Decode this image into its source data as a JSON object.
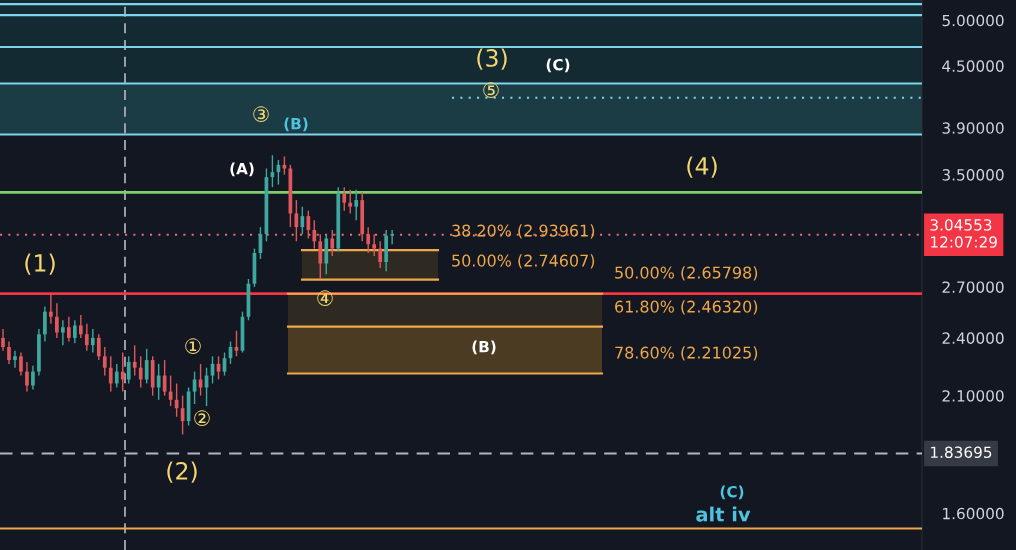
{
  "chart_data": {
    "type": "candlestick",
    "categories": [
      null,
      null,
      null,
      null,
      null,
      null,
      null,
      null,
      null,
      null,
      null,
      null,
      null,
      null,
      null,
      null,
      null,
      null,
      null,
      null,
      null,
      null,
      null,
      null,
      null,
      null,
      null,
      null,
      null,
      null,
      null,
      null,
      null,
      null,
      null,
      null,
      null,
      null,
      null,
      null,
      null,
      null,
      null,
      null,
      null,
      null,
      null,
      null,
      null,
      null,
      null,
      null,
      null,
      null,
      null,
      null,
      null,
      null,
      null,
      null,
      null,
      null,
      null,
      null,
      null,
      null,
      null,
      null,
      null,
      null,
      null,
      null,
      null,
      null,
      null,
      null,
      null,
      null,
      null,
      null,
      null,
      null,
      null,
      null,
      null,
      null,
      null,
      null,
      null,
      null,
      null,
      null,
      null,
      null,
      null,
      null,
      null,
      null,
      null,
      null,
      null,
      null,
      null,
      null,
      null,
      null,
      null,
      null,
      null,
      null,
      null,
      null,
      null,
      null,
      null,
      null,
      null,
      null,
      null,
      null,
      null,
      null,
      null,
      null,
      null,
      null,
      null,
      null,
      null,
      null,
      null,
      null,
      null,
      null,
      null,
      null,
      null,
      null,
      null,
      null,
      null,
      null,
      null,
      null,
      null,
      null,
      null,
      null,
      null,
      null,
      null,
      null,
      null,
      null
    ],
    "ohlc": [
      [
        2.4,
        2.45,
        2.33,
        2.35
      ],
      [
        2.35,
        2.38,
        2.26,
        2.28
      ],
      [
        2.28,
        2.33,
        2.24,
        2.3
      ],
      [
        2.3,
        2.32,
        2.2,
        2.22
      ],
      [
        2.22,
        2.27,
        2.12,
        2.15
      ],
      [
        2.15,
        2.25,
        2.13,
        2.22
      ],
      [
        2.22,
        2.45,
        2.2,
        2.42
      ],
      [
        2.42,
        2.58,
        2.38,
        2.55
      ],
      [
        2.55,
        2.66,
        2.48,
        2.52
      ],
      [
        2.52,
        2.6,
        2.4,
        2.43
      ],
      [
        2.43,
        2.5,
        2.36,
        2.46
      ],
      [
        2.46,
        2.52,
        2.38,
        2.4
      ],
      [
        2.4,
        2.5,
        2.37,
        2.47
      ],
      [
        2.47,
        2.53,
        2.4,
        2.42
      ],
      [
        2.42,
        2.48,
        2.33,
        2.36
      ],
      [
        2.36,
        2.45,
        2.32,
        2.4
      ],
      [
        2.4,
        2.42,
        2.28,
        2.3
      ],
      [
        2.3,
        2.35,
        2.2,
        2.24
      ],
      [
        2.24,
        2.3,
        2.12,
        2.16
      ],
      [
        2.16,
        2.26,
        2.14,
        2.22
      ],
      [
        2.22,
        2.32,
        2.12,
        2.18
      ],
      [
        2.18,
        2.3,
        2.16,
        2.27
      ],
      [
        2.27,
        2.36,
        2.2,
        2.24
      ],
      [
        2.24,
        2.3,
        2.14,
        2.18
      ],
      [
        2.18,
        2.34,
        2.16,
        2.28
      ],
      [
        2.28,
        2.3,
        2.1,
        2.14
      ],
      [
        2.14,
        2.26,
        2.08,
        2.2
      ],
      [
        2.2,
        2.28,
        2.1,
        2.12
      ],
      [
        2.12,
        2.2,
        2.05,
        2.08
      ],
      [
        2.08,
        2.16,
        2.0,
        2.04
      ],
      [
        2.04,
        2.1,
        1.92,
        1.98
      ],
      [
        1.98,
        2.14,
        1.96,
        2.12
      ],
      [
        2.12,
        2.22,
        2.06,
        2.18
      ],
      [
        2.18,
        2.26,
        2.1,
        2.14
      ],
      [
        2.14,
        2.24,
        2.05,
        2.2
      ],
      [
        2.2,
        2.3,
        2.16,
        2.26
      ],
      [
        2.26,
        2.3,
        2.18,
        2.22
      ],
      [
        2.22,
        2.32,
        2.2,
        2.29
      ],
      [
        2.29,
        2.38,
        2.26,
        2.35
      ],
      [
        2.35,
        2.44,
        2.3,
        2.33
      ],
      [
        2.33,
        2.55,
        2.32,
        2.52
      ],
      [
        2.52,
        2.75,
        2.5,
        2.72
      ],
      [
        2.72,
        2.95,
        2.7,
        2.92
      ],
      [
        2.92,
        3.1,
        2.88,
        3.05
      ],
      [
        3.05,
        3.55,
        3.0,
        3.48
      ],
      [
        3.48,
        3.66,
        3.4,
        3.52
      ],
      [
        3.52,
        3.62,
        3.42,
        3.58
      ],
      [
        3.58,
        3.65,
        3.5,
        3.55
      ],
      [
        3.55,
        3.58,
        3.1,
        3.2
      ],
      [
        3.2,
        3.3,
        3.0,
        3.1
      ],
      [
        3.1,
        3.25,
        3.05,
        3.18
      ],
      [
        3.18,
        3.22,
        3.02,
        3.08
      ],
      [
        3.08,
        3.15,
        2.95,
        3.0
      ],
      [
        3.0,
        3.05,
        2.75,
        2.85
      ],
      [
        2.85,
        3.05,
        2.78,
        3.02
      ],
      [
        3.02,
        3.08,
        2.9,
        2.95
      ],
      [
        2.95,
        3.4,
        2.93,
        3.35
      ],
      [
        3.35,
        3.4,
        3.22,
        3.28
      ],
      [
        3.28,
        3.38,
        3.2,
        3.25
      ],
      [
        3.25,
        3.38,
        3.15,
        3.3
      ],
      [
        3.3,
        3.36,
        3.0,
        3.05
      ],
      [
        3.05,
        3.1,
        2.92,
        2.98
      ],
      [
        2.98,
        3.05,
        2.9,
        2.95
      ],
      [
        2.95,
        3.0,
        2.82,
        2.86
      ],
      [
        2.86,
        3.08,
        2.8,
        3.04
      ],
      [
        3.04,
        3.08,
        2.98,
        3.05
      ],
      null,
      null,
      null,
      null,
      null,
      null,
      null,
      null,
      null,
      null,
      null,
      null,
      null,
      null,
      null,
      null,
      null,
      null,
      null,
      null,
      null,
      null,
      null,
      null,
      null,
      null,
      null,
      null,
      null,
      null,
      null,
      null,
      null,
      null,
      null,
      null,
      null,
      null,
      null,
      null,
      null,
      null,
      null,
      null,
      null,
      null,
      null,
      null,
      null,
      null,
      null,
      null,
      null,
      null,
      null,
      null,
      null,
      null,
      null,
      null,
      null,
      null,
      null,
      null,
      null,
      null,
      null,
      null,
      null,
      null,
      null,
      null,
      null,
      null,
      null,
      null,
      null,
      null,
      null,
      null,
      null,
      null,
      null,
      null,
      null,
      null,
      null,
      null
    ],
    "colors": [
      "#e0585b",
      "#e0585b",
      "#3fa89e",
      "#e0585b",
      "#e0585b",
      "#3fa89e",
      "#3fa89e",
      "#3fa89e",
      "#e0585b",
      "#e0585b",
      "#3fa89e",
      "#e0585b",
      "#3fa89e",
      "#e0585b",
      "#e0585b",
      "#3fa89e",
      "#e0585b",
      "#e0585b",
      "#e0585b",
      "#3fa89e",
      "#e0585b",
      "#3fa89e",
      "#e0585b",
      "#e0585b",
      "#3fa89e",
      "#e0585b",
      "#3fa89e",
      "#e0585b",
      "#e0585b",
      "#e0585b",
      "#e0585b",
      "#3fa89e",
      "#3fa89e",
      "#e0585b",
      "#3fa89e",
      "#3fa89e",
      "#e0585b",
      "#3fa89e",
      "#3fa89e",
      "#e0585b",
      "#3fa89e",
      "#3fa89e",
      "#3fa89e",
      "#3fa89e",
      "#3fa89e",
      "#3fa89e",
      "#3fa89e",
      "#e0585b",
      "#e0585b",
      "#e0585b",
      "#3fa89e",
      "#e0585b",
      "#e0585b",
      "#e0585b",
      "#3fa89e",
      "#e0585b",
      "#3fa89e",
      "#e0585b",
      "#e0585b",
      "#3fa89e",
      "#e0585b",
      "#e0585b",
      "#e0585b",
      "#e0585b",
      "#3fa89e",
      "#3fa89e",
      null,
      null,
      null,
      null,
      null,
      null,
      null,
      null,
      null,
      null,
      null,
      null,
      null,
      null,
      null,
      null,
      null,
      null,
      null,
      null,
      null,
      null,
      null,
      null,
      null,
      null,
      null,
      null,
      null,
      null,
      null,
      null,
      null,
      null,
      null,
      null,
      null,
      null,
      null,
      null,
      null,
      null,
      null,
      null,
      null,
      null,
      null,
      null,
      null,
      null,
      null,
      null,
      null,
      null,
      null,
      null,
      null,
      null,
      null,
      null,
      null,
      null,
      null,
      null,
      null,
      null,
      null,
      null,
      null,
      null,
      null,
      null,
      null,
      null,
      null,
      null,
      null,
      null,
      null,
      null,
      null,
      null,
      null,
      null,
      null,
      null,
      null,
      null
    ],
    "log": true,
    "ylim": [
      1.47,
      5.24
    ],
    "yticks": [
      {
        "value": 1.6,
        "label": "1.60000"
      },
      {
        "value": 2.1,
        "label": "2.10000"
      },
      {
        "value": 2.4,
        "label": "2.40000"
      },
      {
        "value": 2.7,
        "label": "2.70000"
      },
      {
        "value": 3.5,
        "label": "3.50000"
      },
      {
        "value": 3.9,
        "label": "3.90000"
      },
      {
        "value": 4.5,
        "label": "4.50000"
      },
      {
        "value": 5.0,
        "label": "5.00000"
      }
    ],
    "tick_labels": "y",
    "bands": [
      {
        "axis": "y",
        "from": 3.84,
        "to": 5.24,
        "label": null,
        "color": "#142a33"
      },
      {
        "axis": "y",
        "from": 3.84,
        "to": 4.32,
        "label": null,
        "color": "#1b3b45"
      },
      {
        "axis": "y",
        "from": 2.74607,
        "to": 2.93961,
        "label": null,
        "color": "#2e2a22"
      },
      {
        "axis": "y",
        "from": 2.4632,
        "to": 2.65798,
        "label": null,
        "color": "#2e2a22"
      },
      {
        "axis": "y",
        "from": 2.21025,
        "to": 2.4632,
        "label": null,
        "color": "#4a3b22"
      }
    ],
    "ref_lines": [
      {
        "axis": "y",
        "value": 5.19,
        "label": null,
        "color": "#7fd3ea",
        "line_style": "solid"
      },
      {
        "axis": "y",
        "value": 5.06,
        "label": null,
        "color": "#7fd3ea",
        "line_style": "solid"
      },
      {
        "axis": "y",
        "value": 4.7,
        "label": null,
        "color": "#7fd3ea",
        "line_style": "solid"
      },
      {
        "axis": "y",
        "value": 4.32,
        "label": null,
        "color": "#7fd3ea",
        "line_style": "solid"
      },
      {
        "axis": "y",
        "value": 3.84,
        "label": null,
        "color": "#7fd3ea",
        "line_style": "solid"
      },
      {
        "axis": "y",
        "value": 4.18,
        "label": null,
        "color": "#7fd3ea",
        "line_style": "dotted"
      },
      {
        "axis": "y",
        "value": 3.36,
        "label": null,
        "color": "#7ccf6a",
        "line_style": "solid"
      },
      {
        "axis": "y",
        "value": 2.65798,
        "label": null,
        "color": "#f23645",
        "line_style": "solid"
      },
      {
        "axis": "y",
        "value": 3.04553,
        "label": "3.04553\n12:07:29",
        "color": "#f0686a",
        "line_style": "dotted"
      },
      {
        "axis": "y",
        "value": 1.83695,
        "label": "1.83695",
        "color": "#b2b5be",
        "line_style": "dashed"
      },
      {
        "axis": "y",
        "value": 1.545,
        "label": null,
        "color": "#f0a94a",
        "line_style": "solid"
      },
      {
        "axis": "y",
        "value": 2.93961,
        "label": "38.20% (2.93961)",
        "color": "#f0a94a",
        "line_style": "solid"
      },
      {
        "axis": "y",
        "value": 2.74607,
        "label": "50.00% (2.74607)",
        "color": "#f0a94a",
        "line_style": "solid"
      },
      {
        "axis": "y",
        "value": 2.65798,
        "label": "50.00% (2.65798)",
        "color": "#f0a94a",
        "line_style": "solid"
      },
      {
        "axis": "y",
        "value": 2.4632,
        "label": "61.80% (2.46320)",
        "color": "#f0a94a",
        "line_style": "solid"
      },
      {
        "axis": "y",
        "value": 2.21025,
        "label": "78.60% (2.21025)",
        "color": "#f0a94a",
        "line_style": "solid"
      }
    ],
    "annotations": [
      "(1)",
      "(2)",
      "(3)",
      "(4)",
      "①",
      "②",
      "③",
      "④",
      "⑤",
      "(A)",
      "(B)",
      "(B)",
      "(C)",
      "(C)",
      "alt iv"
    ]
  }
}
